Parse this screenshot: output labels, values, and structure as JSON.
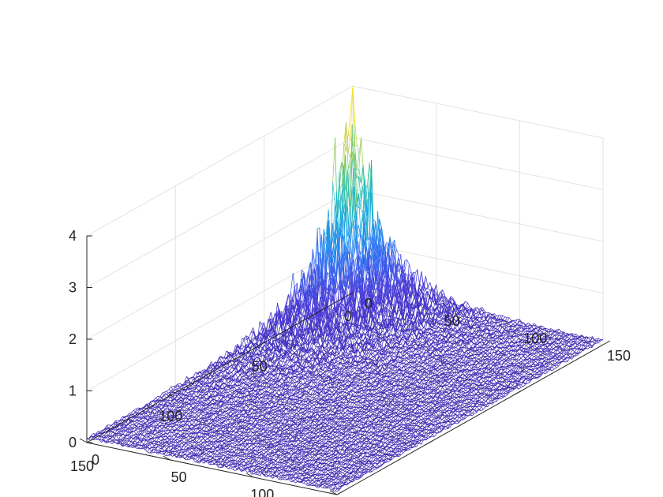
{
  "chart_data": {
    "type": "surface",
    "title": "",
    "xlabel": "",
    "ylabel": "",
    "zlabel": "",
    "x_ticks": [
      "0",
      "50",
      "100",
      "150"
    ],
    "y_ticks": [
      "0",
      "50",
      "100",
      "150"
    ],
    "z_ticks": [
      "0",
      "1",
      "2",
      "3",
      "4"
    ],
    "xlim": [
      0,
      150
    ],
    "ylim": [
      0,
      150
    ],
    "zlim": [
      0,
      4
    ],
    "grid": true,
    "colormap": [
      "#3e26a8",
      "#4a3ddb",
      "#2f7bf5",
      "#14b1d8",
      "#38c6a0",
      "#9bca52",
      "#f5d42b",
      "#f9fb0e"
    ],
    "surface": {
      "grid_size": 120,
      "peak_location": [
        0,
        0
      ],
      "peak_value": 3.9,
      "background_value": 0.08,
      "description_of_shape": "sharp peak at the corner x=0,y=0 decaying toward the far edges"
    }
  }
}
